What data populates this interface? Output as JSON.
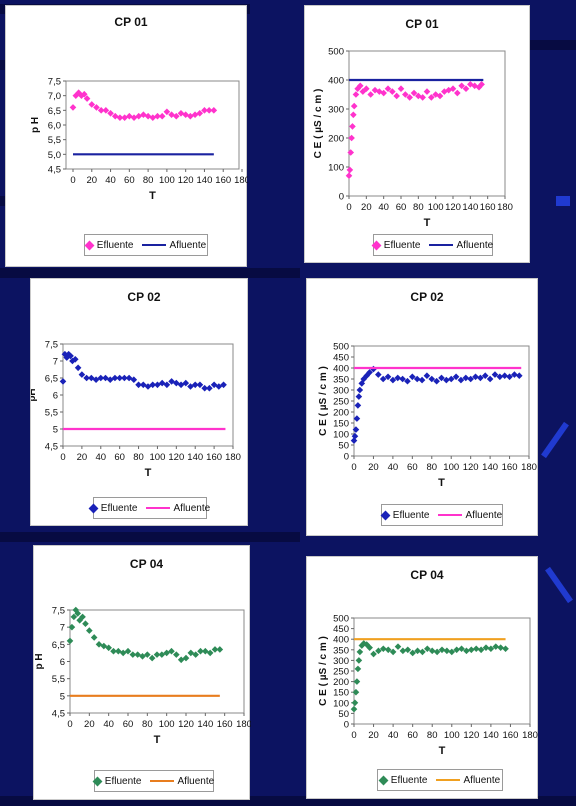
{
  "charts": [
    {
      "id": "c1",
      "title": "CP 01",
      "xlabel": "T",
      "ylabel": "p H",
      "legend": [
        "Efluente",
        "Afluente"
      ],
      "effColor": "#ff33cc",
      "affColor": "#1a22a0",
      "xticks": [
        "0",
        "20",
        "40",
        "60",
        "80",
        "100",
        "120",
        "140",
        "160",
        "180"
      ],
      "yticks": [
        "4,5",
        "5,0",
        "5,5",
        "6,0",
        "6,5",
        "7,0",
        "7,5"
      ]
    },
    {
      "id": "c2",
      "title": "CP 01",
      "xlabel": "T",
      "ylabel": "C E ( µS / c m )",
      "legend": [
        "Efluente",
        "Afluente"
      ],
      "effColor": "#ff33cc",
      "affColor": "#1a22a0",
      "xticks": [
        "0",
        "20",
        "40",
        "60",
        "80",
        "100",
        "120",
        "140",
        "160",
        "180"
      ],
      "yticks": [
        "0",
        "100",
        "200",
        "300",
        "400",
        "500"
      ]
    },
    {
      "id": "c3",
      "title": "CP 02",
      "xlabel": "T",
      "ylabel": "pH",
      "legend": [
        "Efluente",
        "Afluente"
      ],
      "effColor": "#1a22b8",
      "affColor": "#ff33cc",
      "xticks": [
        "0",
        "20",
        "40",
        "60",
        "80",
        "100",
        "120",
        "140",
        "160",
        "180"
      ],
      "yticks": [
        "4,5",
        "5",
        "5,5",
        "6",
        "6,5",
        "7",
        "7,5"
      ]
    },
    {
      "id": "c4",
      "title": "CP 02",
      "xlabel": "T",
      "ylabel": "C E ( µS / c m )",
      "legend": [
        "Efluente",
        "Afluente"
      ],
      "effColor": "#1a22b8",
      "affColor": "#ff33cc",
      "xticks": [
        "0",
        "20",
        "40",
        "60",
        "80",
        "100",
        "120",
        "140",
        "160",
        "180"
      ],
      "yticks": [
        "0",
        "50",
        "100",
        "150",
        "200",
        "250",
        "300",
        "350",
        "400",
        "450",
        "500"
      ]
    },
    {
      "id": "c5",
      "title": "CP 04",
      "xlabel": "T",
      "ylabel": "p H",
      "legend": [
        "Efluente",
        "Afluente"
      ],
      "effColor": "#2e8b57",
      "affColor": "#e87d1e",
      "xticks": [
        "0",
        "20",
        "40",
        "60",
        "80",
        "100",
        "120",
        "140",
        "160",
        "180"
      ],
      "yticks": [
        "4,5",
        "5",
        "5,5",
        "6",
        "6,5",
        "7",
        "7,5"
      ]
    },
    {
      "id": "c6",
      "title": "CP 04",
      "xlabel": "T",
      "ylabel": "C E ( µS / c m )",
      "legend": [
        "Efluente",
        "Afluente"
      ],
      "effColor": "#2e8b57",
      "affColor": "#f0a020",
      "xticks": [
        "0",
        "20",
        "40",
        "60",
        "80",
        "100",
        "120",
        "140",
        "160",
        "180"
      ],
      "yticks": [
        "0",
        "50",
        "100",
        "150",
        "200",
        "250",
        "300",
        "350",
        "400",
        "450",
        "500"
      ]
    }
  ],
  "chart_data": [
    {
      "type": "scatter",
      "title": "CP 01",
      "xlabel": "T",
      "ylabel": "p H",
      "xlim": [
        0,
        180
      ],
      "ylim": [
        4.5,
        7.5
      ],
      "series": [
        {
          "name": "Efluente",
          "style": "markers",
          "x": [
            0,
            3,
            6,
            9,
            12,
            15,
            20,
            25,
            30,
            35,
            40,
            45,
            50,
            55,
            60,
            65,
            70,
            75,
            80,
            85,
            90,
            95,
            100,
            105,
            110,
            115,
            120,
            125,
            130,
            135,
            140,
            145,
            150
          ],
          "y": [
            6.6,
            7.0,
            7.1,
            7.0,
            7.05,
            6.9,
            6.7,
            6.6,
            6.5,
            6.5,
            6.4,
            6.3,
            6.25,
            6.25,
            6.3,
            6.25,
            6.3,
            6.35,
            6.3,
            6.25,
            6.3,
            6.3,
            6.45,
            6.35,
            6.3,
            6.4,
            6.35,
            6.3,
            6.35,
            6.4,
            6.5,
            6.5,
            6.5
          ]
        },
        {
          "name": "Afluente",
          "style": "line",
          "x": [
            0,
            150
          ],
          "y": [
            5.0,
            5.0
          ]
        }
      ]
    },
    {
      "type": "scatter",
      "title": "CP 01",
      "xlabel": "T",
      "ylabel": "C E ( µS / c m )",
      "xlim": [
        0,
        180
      ],
      "ylim": [
        0,
        500
      ],
      "series": [
        {
          "name": "Efluente",
          "style": "markers",
          "x": [
            0,
            1,
            2,
            3,
            4,
            5,
            6,
            8,
            10,
            13,
            16,
            20,
            25,
            30,
            35,
            40,
            45,
            50,
            55,
            60,
            65,
            70,
            75,
            80,
            85,
            90,
            95,
            100,
            105,
            110,
            115,
            120,
            125,
            130,
            135,
            140,
            145,
            150,
            153
          ],
          "y": [
            70,
            90,
            150,
            200,
            240,
            280,
            310,
            350,
            370,
            380,
            360,
            370,
            350,
            365,
            360,
            355,
            370,
            360,
            345,
            370,
            350,
            340,
            355,
            345,
            340,
            360,
            340,
            350,
            345,
            360,
            365,
            370,
            355,
            380,
            370,
            385,
            380,
            375,
            385
          ]
        },
        {
          "name": "Afluente",
          "style": "line",
          "x": [
            0,
            155
          ],
          "y": [
            400,
            400
          ]
        }
      ]
    },
    {
      "type": "scatter",
      "title": "CP 02",
      "xlabel": "T",
      "ylabel": "pH",
      "xlim": [
        0,
        180
      ],
      "ylim": [
        4.5,
        7.5
      ],
      "series": [
        {
          "name": "Efluente",
          "style": "markers",
          "x": [
            0,
            2,
            4,
            6,
            8,
            10,
            13,
            16,
            20,
            25,
            30,
            35,
            40,
            45,
            50,
            55,
            60,
            65,
            70,
            75,
            80,
            85,
            90,
            95,
            100,
            105,
            110,
            115,
            120,
            125,
            130,
            135,
            140,
            145,
            150,
            155,
            160,
            165,
            170
          ],
          "y": [
            6.4,
            7.2,
            7.1,
            7.2,
            7.15,
            7.0,
            7.05,
            6.8,
            6.6,
            6.5,
            6.5,
            6.45,
            6.5,
            6.5,
            6.45,
            6.5,
            6.5,
            6.5,
            6.5,
            6.45,
            6.3,
            6.3,
            6.25,
            6.3,
            6.3,
            6.35,
            6.3,
            6.4,
            6.35,
            6.3,
            6.35,
            6.25,
            6.3,
            6.3,
            6.2,
            6.2,
            6.3,
            6.25,
            6.3
          ]
        },
        {
          "name": "Afluente",
          "style": "line",
          "x": [
            0,
            172
          ],
          "y": [
            5.0,
            5.0
          ]
        }
      ]
    },
    {
      "type": "scatter",
      "title": "CP 02",
      "xlabel": "T",
      "ylabel": "C E ( µS / c m )",
      "xlim": [
        0,
        180
      ],
      "ylim": [
        0,
        500
      ],
      "series": [
        {
          "name": "Efluente",
          "style": "markers",
          "x": [
            0,
            1,
            2,
            3,
            4,
            5,
            6,
            8,
            10,
            13,
            16,
            20,
            25,
            30,
            35,
            40,
            45,
            50,
            55,
            60,
            65,
            70,
            75,
            80,
            85,
            90,
            95,
            100,
            105,
            110,
            115,
            120,
            125,
            130,
            135,
            140,
            145,
            150,
            155,
            160,
            165,
            170
          ],
          "y": [
            70,
            90,
            120,
            170,
            230,
            270,
            300,
            330,
            350,
            365,
            380,
            395,
            370,
            350,
            360,
            345,
            355,
            350,
            340,
            360,
            350,
            345,
            365,
            350,
            340,
            355,
            345,
            350,
            360,
            345,
            355,
            350,
            360,
            355,
            365,
            350,
            370,
            360,
            365,
            360,
            370,
            365
          ]
        },
        {
          "name": "Afluente",
          "style": "line",
          "x": [
            0,
            172
          ],
          "y": [
            400,
            400
          ]
        }
      ]
    },
    {
      "type": "scatter",
      "title": "CP 04",
      "xlabel": "T",
      "ylabel": "p H",
      "xlim": [
        0,
        180
      ],
      "ylim": [
        4.5,
        7.5
      ],
      "series": [
        {
          "name": "Efluente",
          "style": "markers",
          "x": [
            0,
            2,
            4,
            6,
            8,
            10,
            13,
            16,
            20,
            25,
            30,
            35,
            40,
            45,
            50,
            55,
            60,
            65,
            70,
            75,
            80,
            85,
            90,
            95,
            100,
            105,
            110,
            115,
            120,
            125,
            130,
            135,
            140,
            145,
            150,
            155
          ],
          "y": [
            6.6,
            7.0,
            7.3,
            7.5,
            7.4,
            7.2,
            7.3,
            7.1,
            6.9,
            6.7,
            6.5,
            6.45,
            6.4,
            6.3,
            6.3,
            6.25,
            6.3,
            6.2,
            6.2,
            6.15,
            6.2,
            6.1,
            6.2,
            6.2,
            6.25,
            6.3,
            6.2,
            6.05,
            6.1,
            6.25,
            6.2,
            6.3,
            6.3,
            6.25,
            6.35,
            6.35
          ]
        },
        {
          "name": "Afluente",
          "style": "line",
          "x": [
            0,
            155
          ],
          "y": [
            5.0,
            5.0
          ]
        }
      ]
    },
    {
      "type": "scatter",
      "title": "CP 04",
      "xlabel": "T",
      "ylabel": "C E ( µS / c m )",
      "xlim": [
        0,
        180
      ],
      "ylim": [
        0,
        500
      ],
      "series": [
        {
          "name": "Efluente",
          "style": "markers",
          "x": [
            0,
            1,
            2,
            3,
            4,
            5,
            6,
            8,
            10,
            13,
            16,
            20,
            25,
            30,
            35,
            40,
            45,
            50,
            55,
            60,
            65,
            70,
            75,
            80,
            85,
            90,
            95,
            100,
            105,
            110,
            115,
            120,
            125,
            130,
            135,
            140,
            145,
            150,
            155
          ],
          "y": [
            70,
            100,
            150,
            200,
            260,
            300,
            340,
            370,
            380,
            375,
            360,
            330,
            345,
            355,
            350,
            340,
            365,
            345,
            350,
            335,
            345,
            340,
            355,
            345,
            340,
            350,
            345,
            340,
            350,
            355,
            345,
            350,
            355,
            350,
            360,
            355,
            365,
            360,
            355
          ]
        },
        {
          "name": "Afluente",
          "style": "line",
          "x": [
            0,
            155
          ],
          "y": [
            400,
            400
          ]
        }
      ]
    }
  ]
}
